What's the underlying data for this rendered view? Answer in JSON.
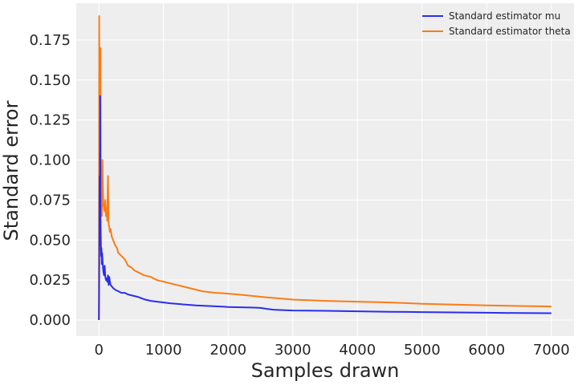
{
  "chart_data": {
    "type": "line",
    "title": "",
    "xlabel": "Samples drawn",
    "ylabel": "Standard error",
    "xlim": [
      -350,
      7350
    ],
    "ylim": [
      -0.01,
      0.198
    ],
    "xticks": [
      0,
      1000,
      2000,
      3000,
      4000,
      5000,
      6000,
      7000
    ],
    "xtick_labels": [
      "0",
      "1000",
      "2000",
      "3000",
      "4000",
      "5000",
      "6000",
      "7000"
    ],
    "yticks": [
      0.0,
      0.025,
      0.05,
      0.075,
      0.1,
      0.125,
      0.15,
      0.175
    ],
    "ytick_labels": [
      "0.000",
      "0.025",
      "0.050",
      "0.075",
      "0.100",
      "0.125",
      "0.150",
      "0.175"
    ],
    "grid": true,
    "legend_position": "top-right",
    "colors": {
      "background": "#eeeeee",
      "grid": "#ffffff"
    },
    "series": [
      {
        "name": "Standard estimator mu",
        "color": "#2a2eec",
        "x": [
          0,
          5,
          10,
          15,
          20,
          25,
          30,
          35,
          40,
          45,
          50,
          60,
          70,
          80,
          90,
          100,
          110,
          120,
          130,
          140,
          150,
          160,
          170,
          180,
          200,
          220,
          250,
          300,
          350,
          400,
          450,
          500,
          550,
          600,
          700,
          800,
          900,
          1000,
          1100,
          1200,
          1300,
          1400,
          1500,
          1600,
          1700,
          1800,
          1900,
          2000,
          2200,
          2400,
          2500,
          2600,
          2700,
          2800,
          3000,
          3500,
          4000,
          4500,
          5000,
          5500,
          6000,
          6500,
          7000
        ],
        "values": [
          0.0,
          0.03,
          0.09,
          0.06,
          0.14,
          0.065,
          0.05,
          0.04,
          0.045,
          0.035,
          0.042,
          0.035,
          0.03,
          0.028,
          0.034,
          0.027,
          0.025,
          0.026,
          0.024,
          0.028,
          0.022,
          0.027,
          0.024,
          0.022,
          0.021,
          0.02,
          0.019,
          0.018,
          0.017,
          0.017,
          0.016,
          0.0155,
          0.015,
          0.0145,
          0.013,
          0.012,
          0.0115,
          0.011,
          0.0105,
          0.0102,
          0.0098,
          0.0095,
          0.0092,
          0.009,
          0.0088,
          0.0086,
          0.0084,
          0.0082,
          0.008,
          0.0078,
          0.0076,
          0.007,
          0.0065,
          0.0063,
          0.006,
          0.0058,
          0.0055,
          0.0052,
          0.005,
          0.0048,
          0.0046,
          0.0044,
          0.0043
        ]
      },
      {
        "name": "Standard estimator theta",
        "color": "#fa7c17",
        "x": [
          0,
          5,
          10,
          15,
          20,
          25,
          30,
          35,
          40,
          45,
          50,
          55,
          60,
          70,
          80,
          90,
          100,
          110,
          120,
          130,
          140,
          150,
          160,
          170,
          180,
          200,
          220,
          250,
          280,
          300,
          350,
          400,
          450,
          500,
          550,
          600,
          650,
          700,
          800,
          900,
          1000,
          1100,
          1200,
          1300,
          1400,
          1500,
          1600,
          1700,
          1800,
          1900,
          2000,
          2200,
          2400,
          2600,
          2800,
          3000,
          3200,
          3500,
          4000,
          4500,
          5000,
          5500,
          6000,
          6500,
          7000
        ],
        "values": [
          0.0,
          0.19,
          0.12,
          0.15,
          0.06,
          0.17,
          0.07,
          0.09,
          0.08,
          0.065,
          0.075,
          0.1,
          0.085,
          0.072,
          0.07,
          0.068,
          0.075,
          0.065,
          0.07,
          0.062,
          0.09,
          0.06,
          0.058,
          0.055,
          0.057,
          0.052,
          0.05,
          0.047,
          0.045,
          0.042,
          0.04,
          0.038,
          0.034,
          0.033,
          0.031,
          0.03,
          0.029,
          0.028,
          0.027,
          0.025,
          0.024,
          0.023,
          0.022,
          0.021,
          0.02,
          0.019,
          0.018,
          0.0175,
          0.017,
          0.0168,
          0.0165,
          0.0158,
          0.015,
          0.0142,
          0.0135,
          0.0128,
          0.0125,
          0.012,
          0.0115,
          0.011,
          0.0102,
          0.0097,
          0.0092,
          0.0088,
          0.0085
        ]
      }
    ]
  }
}
